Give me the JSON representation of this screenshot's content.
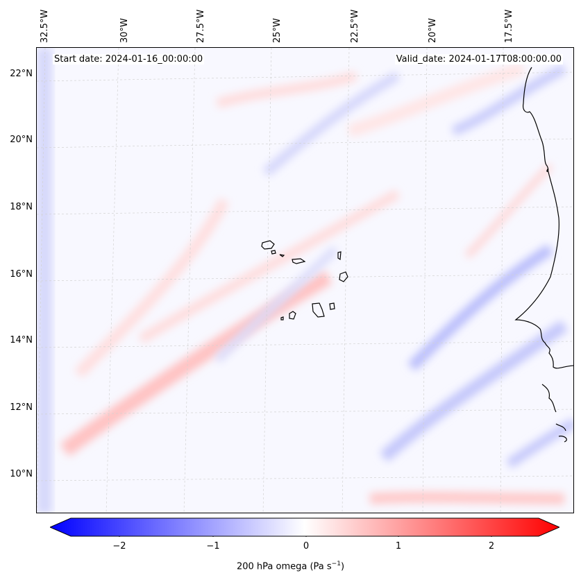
{
  "header": {
    "start_date": "Start date: 2024-01-16_00:00:00",
    "valid_date": "Valid_date: 2024-01-17T08:00:00.00"
  },
  "axes": {
    "longitude_labels": [
      "32.5°W",
      "30°W",
      "27.5°W",
      "25°W",
      "22.5°W",
      "20°W",
      "17.5°W"
    ],
    "latitude_labels": [
      "22°N",
      "20°N",
      "18°N",
      "16°N",
      "14°N",
      "12°N",
      "10°N"
    ]
  },
  "colorbar": {
    "label": "200 hPa omega (Pa s",
    "label_exp": "−1",
    "label_close": ")",
    "ticks": [
      "−2",
      "−1",
      "0",
      "1",
      "2"
    ],
    "min_color": "#0000ff",
    "mid_color": "#ffffff",
    "max_color": "#ff0000"
  },
  "colors": {
    "coastline": "#000000",
    "gridline": "#c8c8c8"
  }
}
